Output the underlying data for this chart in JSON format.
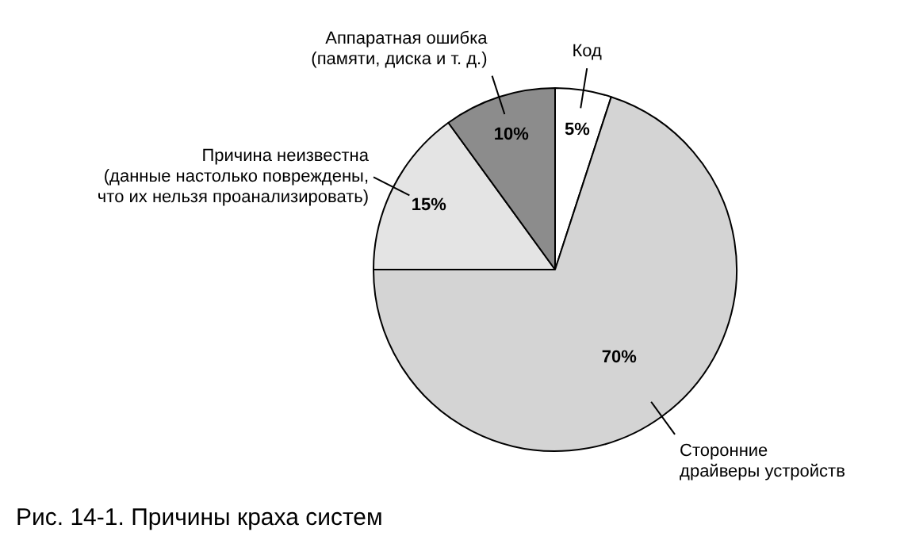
{
  "chart_data": {
    "type": "pie",
    "title": "Рис. 14-1. Причины краха систем",
    "categories": [
      "Код",
      "Сторонние\nдрайверы устройств",
      "Причина неизвестна\n(данные настолько повреждены,\nчто их нельзя проанализировать)",
      "Аппаратная ошибка\n(памяти, диска и т. д.)"
    ],
    "values": [
      5,
      70,
      15,
      10
    ],
    "colors": [
      "#ffffff",
      "#d4d4d4",
      "#e4e4e4",
      "#8c8c8c"
    ],
    "value_labels": [
      "5%",
      "70%",
      "15%",
      "10%"
    ],
    "legend": false
  }
}
